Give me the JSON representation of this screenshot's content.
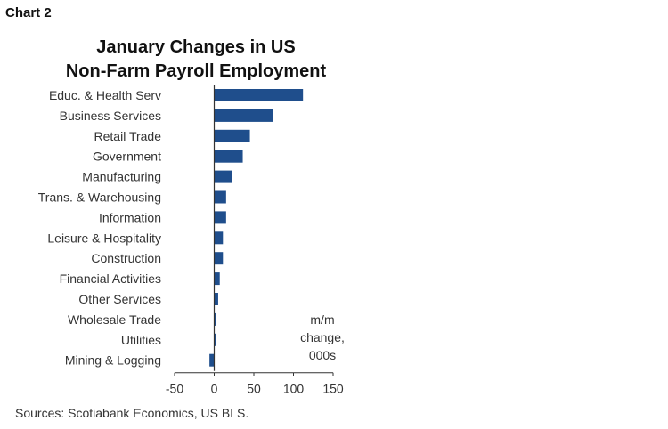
{
  "figure_label": "Chart 2",
  "source": "Sources: Scotiabank Economics, US BLS.",
  "colors": {
    "bar": "#1f4e8c",
    "axis": "#333333"
  },
  "chart_data": {
    "type": "bar",
    "orientation": "horizontal",
    "title_lines": [
      "January Changes in US",
      "Non-Farm Payroll Employment"
    ],
    "categories": [
      "Educ. & Health Serv",
      "Business Services",
      "Retail Trade",
      "Government",
      "Manufacturing",
      "Trans. & Warehousing",
      "Information",
      "Leisure & Hospitality",
      "Construction",
      "Financial Activities",
      "Other Services",
      "Wholesale Trade",
      "Utilities",
      "Mining & Logging"
    ],
    "values": [
      112,
      74,
      45,
      36,
      23,
      15,
      15,
      11,
      11,
      7,
      5,
      1,
      1,
      -6
    ],
    "unit_label_lines": [
      "m/m",
      "change,",
      "000s"
    ],
    "xlim": [
      -50,
      150
    ],
    "xticks": [
      -50,
      0,
      50,
      100,
      150
    ],
    "grid": false,
    "legend": "none"
  }
}
